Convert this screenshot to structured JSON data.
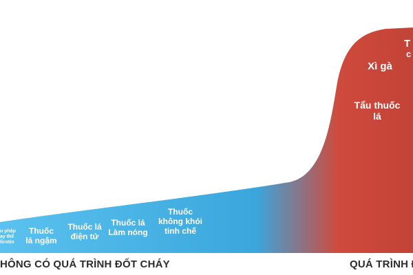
{
  "colors": {
    "blue": "#3aa6dc",
    "blue_light": "#5bc2ef",
    "red": "#cf4a3c",
    "red_dark": "#c24337",
    "text_dark": "#2b2b2b"
  },
  "products_low": [
    {
      "line1": "u pháp",
      "line2": "ay thế",
      "line3": "licotin"
    },
    {
      "line1": "Thuốc",
      "line2": "lá ngậm"
    },
    {
      "line1": "Thuốc lá",
      "line2": "điện tử"
    },
    {
      "line1": "Thuốc lá",
      "line2": "Làm nóng"
    },
    {
      "line1": "Thuốc",
      "line2": "không khói",
      "line3": "tinh chế"
    }
  ],
  "products_high": [
    {
      "line1": "Xì gà"
    },
    {
      "line1": "Tẩu thuốc",
      "line2": "lá"
    },
    {
      "line1": "T"
    },
    {
      "line1": "c"
    }
  ],
  "captions": {
    "left": "HÔNG CÓ QUÁ TRÌNH ĐỐT CHÁY",
    "right": "QUÁ TRÌNH Đ"
  }
}
